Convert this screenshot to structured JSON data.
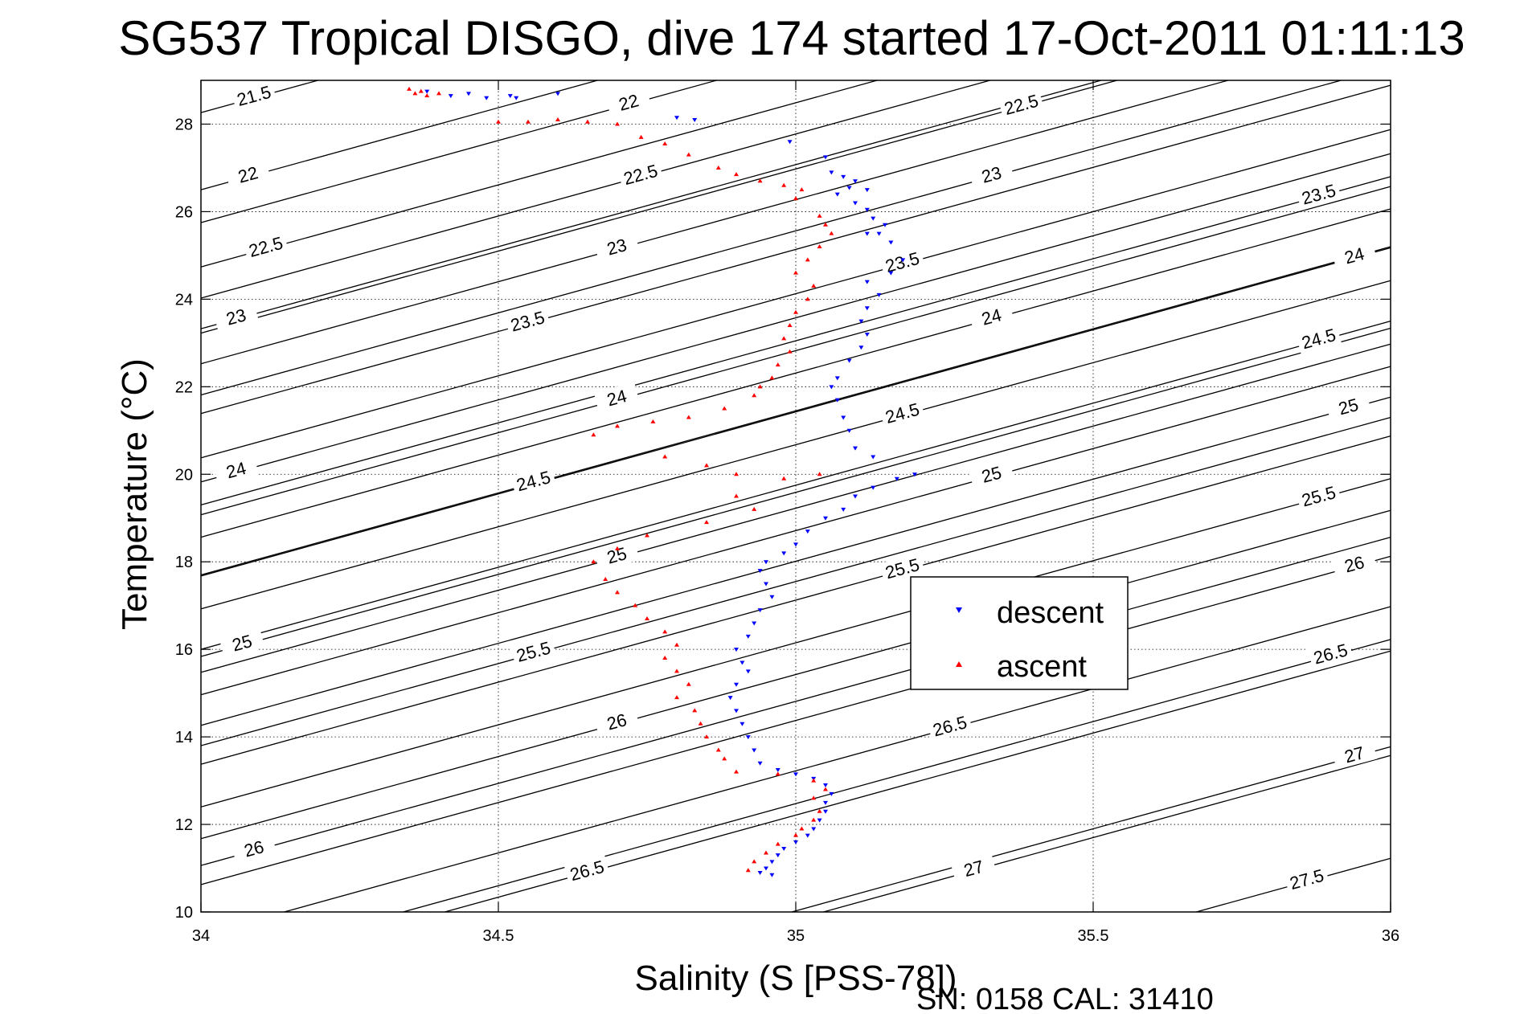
{
  "chart_data": {
    "type": "scatter",
    "title": "SG537 Tropical DISGO, dive 174 started 17-Oct-2011 01:11:13",
    "xlabel": "Salinity (S [PSS-78])",
    "ylabel": "Temperature (°C)",
    "xlim": [
      34,
      36
    ],
    "ylim": [
      10,
      29
    ],
    "x_ticks": [
      "34",
      "34.5",
      "35",
      "35.5",
      "36"
    ],
    "y_ticks": [
      "10",
      "12",
      "14",
      "16",
      "18",
      "20",
      "22",
      "24",
      "26",
      "28"
    ],
    "grid": true,
    "legend_position": "center-right",
    "footer": "SN: 0158  CAL: 31410",
    "density_contours": {
      "levels": [
        "21.5",
        "22",
        "22.5",
        "23",
        "23.5",
        "24",
        "24.5",
        "25",
        "25.5",
        "26",
        "26.5",
        "27",
        "27.5"
      ],
      "label_points": [
        {
          "level": "21.5",
          "x": 34.09,
          "y": 28.6
        },
        {
          "level": "22",
          "x": 34.72,
          "y": 28.45
        },
        {
          "level": "22.5",
          "x": 35.38,
          "y": 28.4
        },
        {
          "level": "22",
          "x": 34.08,
          "y": 26.8
        },
        {
          "level": "22.5",
          "x": 34.74,
          "y": 26.8
        },
        {
          "level": "23",
          "x": 35.33,
          "y": 26.8
        },
        {
          "level": "23.5",
          "x": 35.88,
          "y": 26.35
        },
        {
          "level": "22.5",
          "x": 34.11,
          "y": 25.15
        },
        {
          "level": "23",
          "x": 34.7,
          "y": 25.15
        },
        {
          "level": "23.5",
          "x": 35.18,
          "y": 24.8
        },
        {
          "level": "24",
          "x": 35.94,
          "y": 24.95
        },
        {
          "level": "23",
          "x": 34.06,
          "y": 23.55
        },
        {
          "level": "23.5",
          "x": 34.55,
          "y": 23.45
        },
        {
          "level": "24",
          "x": 35.33,
          "y": 23.55
        },
        {
          "level": "24.5",
          "x": 35.88,
          "y": 23.05
        },
        {
          "level": "24",
          "x": 34.7,
          "y": 21.7
        },
        {
          "level": "24.5",
          "x": 35.18,
          "y": 21.35
        },
        {
          "level": "25",
          "x": 35.93,
          "y": 21.5
        },
        {
          "level": "24",
          "x": 34.06,
          "y": 20.05
        },
        {
          "level": "24.5",
          "x": 34.56,
          "y": 19.8
        },
        {
          "level": "25",
          "x": 35.33,
          "y": 19.95
        },
        {
          "level": "25.5",
          "x": 35.88,
          "y": 19.45
        },
        {
          "level": "25",
          "x": 34.7,
          "y": 18.1
        },
        {
          "level": "25.5",
          "x": 35.18,
          "y": 17.8
        },
        {
          "level": "26",
          "x": 35.94,
          "y": 17.9
        },
        {
          "level": "25",
          "x": 34.07,
          "y": 16.1
        },
        {
          "level": "25.5",
          "x": 34.56,
          "y": 15.9
        },
        {
          "level": "26.5",
          "x": 35.9,
          "y": 15.85
        },
        {
          "level": "26",
          "x": 34.7,
          "y": 14.3
        },
        {
          "level": "26.5",
          "x": 35.26,
          "y": 14.2
        },
        {
          "level": "27",
          "x": 35.94,
          "y": 13.55
        },
        {
          "level": "26",
          "x": 34.09,
          "y": 11.4
        },
        {
          "level": "26.5",
          "x": 34.65,
          "y": 10.9
        },
        {
          "level": "27",
          "x": 35.3,
          "y": 10.95
        },
        {
          "level": "27.5",
          "x": 35.86,
          "y": 10.7
        }
      ]
    },
    "series": [
      {
        "name": "descent",
        "color": "#0000ff",
        "marker": "triangle-down",
        "points": [
          [
            34.38,
            28.75
          ],
          [
            34.45,
            28.7
          ],
          [
            34.52,
            28.65
          ],
          [
            34.6,
            28.7
          ],
          [
            34.53,
            28.6
          ],
          [
            34.48,
            28.6
          ],
          [
            34.42,
            28.65
          ],
          [
            34.8,
            28.15
          ],
          [
            34.83,
            28.1
          ],
          [
            34.99,
            27.6
          ],
          [
            35.05,
            27.25
          ],
          [
            35.06,
            26.9
          ],
          [
            35.08,
            26.8
          ],
          [
            35.1,
            26.7
          ],
          [
            35.12,
            26.5
          ],
          [
            35.09,
            26.55
          ],
          [
            35.07,
            26.4
          ],
          [
            35.1,
            26.2
          ],
          [
            35.12,
            26.05
          ],
          [
            35.13,
            25.85
          ],
          [
            35.15,
            25.7
          ],
          [
            35.14,
            25.5
          ],
          [
            35.12,
            25.5
          ],
          [
            35.16,
            25.3
          ],
          [
            35.18,
            24.9
          ],
          [
            35.16,
            24.6
          ],
          [
            35.12,
            24.4
          ],
          [
            35.14,
            24.1
          ],
          [
            35.12,
            23.8
          ],
          [
            35.11,
            23.5
          ],
          [
            35.12,
            23.2
          ],
          [
            35.11,
            22.9
          ],
          [
            35.09,
            22.6
          ],
          [
            35.07,
            22.2
          ],
          [
            35.06,
            22.0
          ],
          [
            35.07,
            21.7
          ],
          [
            35.08,
            21.3
          ],
          [
            35.09,
            21.0
          ],
          [
            35.1,
            20.6
          ],
          [
            35.13,
            20.4
          ],
          [
            35.2,
            20.0
          ],
          [
            35.17,
            19.9
          ],
          [
            35.13,
            19.7
          ],
          [
            35.1,
            19.5
          ],
          [
            35.08,
            19.2
          ],
          [
            35.05,
            19.0
          ],
          [
            35.02,
            18.7
          ],
          [
            35.0,
            18.4
          ],
          [
            34.98,
            18.2
          ],
          [
            34.95,
            18.0
          ],
          [
            34.94,
            17.8
          ],
          [
            34.95,
            17.5
          ],
          [
            34.96,
            17.2
          ],
          [
            34.94,
            16.9
          ],
          [
            34.93,
            16.6
          ],
          [
            34.92,
            16.3
          ],
          [
            34.9,
            16.0
          ],
          [
            34.91,
            15.7
          ],
          [
            34.92,
            15.5
          ],
          [
            34.9,
            15.2
          ],
          [
            34.89,
            14.9
          ],
          [
            34.9,
            14.6
          ],
          [
            34.91,
            14.3
          ],
          [
            34.92,
            14.0
          ],
          [
            34.93,
            13.7
          ],
          [
            34.94,
            13.4
          ],
          [
            34.97,
            13.25
          ],
          [
            35.0,
            13.15
          ],
          [
            35.03,
            13.05
          ],
          [
            35.05,
            12.9
          ],
          [
            35.06,
            12.7
          ],
          [
            35.05,
            12.5
          ],
          [
            35.05,
            12.3
          ],
          [
            35.04,
            12.1
          ],
          [
            35.03,
            11.9
          ],
          [
            35.02,
            11.75
          ],
          [
            35.0,
            11.6
          ],
          [
            34.98,
            11.45
          ],
          [
            34.97,
            11.3
          ],
          [
            34.96,
            11.15
          ],
          [
            34.95,
            11.0
          ],
          [
            34.94,
            10.9
          ],
          [
            34.96,
            10.85
          ]
        ]
      },
      {
        "name": "ascent",
        "color": "#ff0000",
        "marker": "triangle-up",
        "points": [
          [
            34.35,
            28.8
          ],
          [
            34.37,
            28.75
          ],
          [
            34.4,
            28.7
          ],
          [
            34.38,
            28.65
          ],
          [
            34.36,
            28.7
          ],
          [
            34.5,
            28.05
          ],
          [
            34.55,
            28.05
          ],
          [
            34.6,
            28.1
          ],
          [
            34.65,
            28.05
          ],
          [
            34.7,
            28.0
          ],
          [
            34.74,
            27.7
          ],
          [
            34.78,
            27.55
          ],
          [
            34.82,
            27.3
          ],
          [
            34.87,
            27.0
          ],
          [
            34.9,
            26.85
          ],
          [
            34.94,
            26.7
          ],
          [
            34.98,
            26.6
          ],
          [
            35.01,
            26.5
          ],
          [
            35.0,
            26.3
          ],
          [
            35.04,
            25.9
          ],
          [
            35.05,
            25.7
          ],
          [
            35.06,
            25.5
          ],
          [
            35.04,
            25.2
          ],
          [
            35.02,
            24.9
          ],
          [
            35.0,
            24.6
          ],
          [
            35.03,
            24.3
          ],
          [
            35.02,
            24.0
          ],
          [
            35.0,
            23.7
          ],
          [
            34.99,
            23.4
          ],
          [
            34.98,
            23.1
          ],
          [
            34.99,
            22.8
          ],
          [
            34.97,
            22.5
          ],
          [
            34.96,
            22.2
          ],
          [
            34.94,
            22.0
          ],
          [
            34.93,
            21.8
          ],
          [
            34.88,
            21.5
          ],
          [
            34.82,
            21.3
          ],
          [
            34.76,
            21.2
          ],
          [
            34.7,
            21.1
          ],
          [
            34.66,
            20.9
          ],
          [
            34.78,
            20.4
          ],
          [
            34.85,
            20.2
          ],
          [
            34.9,
            20.0
          ],
          [
            34.98,
            19.9
          ],
          [
            35.04,
            20.0
          ],
          [
            34.9,
            19.5
          ],
          [
            34.93,
            19.2
          ],
          [
            34.85,
            18.9
          ],
          [
            34.75,
            18.6
          ],
          [
            34.7,
            18.3
          ],
          [
            34.66,
            18.0
          ],
          [
            34.68,
            17.6
          ],
          [
            34.7,
            17.3
          ],
          [
            34.73,
            17.0
          ],
          [
            34.75,
            16.7
          ],
          [
            34.78,
            16.4
          ],
          [
            34.8,
            16.1
          ],
          [
            34.78,
            15.8
          ],
          [
            34.8,
            15.5
          ],
          [
            34.82,
            15.2
          ],
          [
            34.8,
            14.9
          ],
          [
            34.83,
            14.6
          ],
          [
            34.84,
            14.3
          ],
          [
            34.85,
            14.0
          ],
          [
            34.87,
            13.7
          ],
          [
            34.88,
            13.5
          ],
          [
            34.9,
            13.2
          ],
          [
            34.97,
            13.15
          ],
          [
            35.03,
            13.0
          ],
          [
            35.05,
            12.8
          ],
          [
            35.03,
            12.6
          ],
          [
            35.04,
            12.3
          ],
          [
            35.03,
            12.1
          ],
          [
            35.01,
            11.9
          ],
          [
            35.0,
            11.75
          ],
          [
            34.97,
            11.55
          ],
          [
            34.95,
            11.35
          ],
          [
            34.93,
            11.15
          ],
          [
            34.92,
            10.95
          ]
        ]
      }
    ]
  }
}
